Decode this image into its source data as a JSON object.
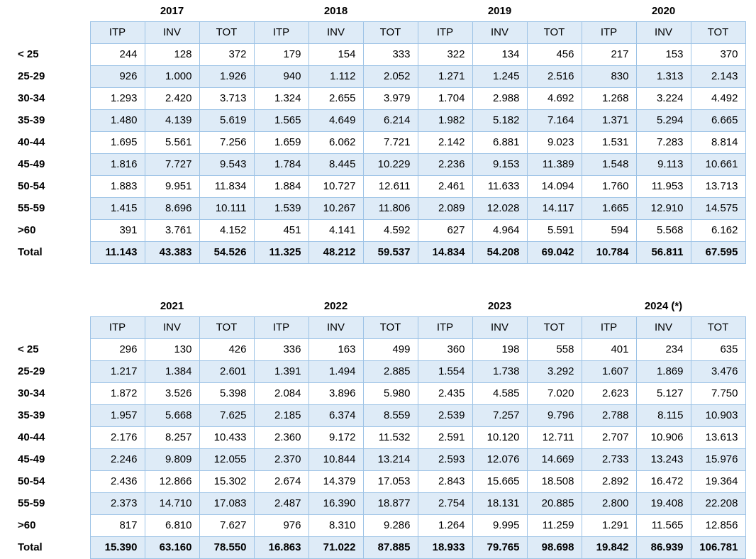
{
  "measures": [
    "ITP",
    "INV",
    "TOT"
  ],
  "tables": [
    {
      "name": "age-distribution-2017-2020",
      "years": [
        "2017",
        "2018",
        "2019",
        "2020"
      ],
      "rows": [
        {
          "label": "< 25",
          "values": [
            "244",
            "128",
            "372",
            "179",
            "154",
            "333",
            "322",
            "134",
            "456",
            "217",
            "153",
            "370"
          ]
        },
        {
          "label": "25-29",
          "values": [
            "926",
            "1.000",
            "1.926",
            "940",
            "1.112",
            "2.052",
            "1.271",
            "1.245",
            "2.516",
            "830",
            "1.313",
            "2.143"
          ]
        },
        {
          "label": "30-34",
          "values": [
            "1.293",
            "2.420",
            "3.713",
            "1.324",
            "2.655",
            "3.979",
            "1.704",
            "2.988",
            "4.692",
            "1.268",
            "3.224",
            "4.492"
          ]
        },
        {
          "label": "35-39",
          "values": [
            "1.480",
            "4.139",
            "5.619",
            "1.565",
            "4.649",
            "6.214",
            "1.982",
            "5.182",
            "7.164",
            "1.371",
            "5.294",
            "6.665"
          ]
        },
        {
          "label": "40-44",
          "values": [
            "1.695",
            "5.561",
            "7.256",
            "1.659",
            "6.062",
            "7.721",
            "2.142",
            "6.881",
            "9.023",
            "1.531",
            "7.283",
            "8.814"
          ]
        },
        {
          "label": "45-49",
          "values": [
            "1.816",
            "7.727",
            "9.543",
            "1.784",
            "8.445",
            "10.229",
            "2.236",
            "9.153",
            "11.389",
            "1.548",
            "9.113",
            "10.661"
          ]
        },
        {
          "label": "50-54",
          "values": [
            "1.883",
            "9.951",
            "11.834",
            "1.884",
            "10.727",
            "12.611",
            "2.461",
            "11.633",
            "14.094",
            "1.760",
            "11.953",
            "13.713"
          ]
        },
        {
          "label": "55-59",
          "values": [
            "1.415",
            "8.696",
            "10.111",
            "1.539",
            "10.267",
            "11.806",
            "2.089",
            "12.028",
            "14.117",
            "1.665",
            "12.910",
            "14.575"
          ]
        },
        {
          "label": ">60",
          "values": [
            "391",
            "3.761",
            "4.152",
            "451",
            "4.141",
            "4.592",
            "627",
            "4.964",
            "5.591",
            "594",
            "5.568",
            "6.162"
          ]
        },
        {
          "label": "Total",
          "values": [
            "11.143",
            "43.383",
            "54.526",
            "11.325",
            "48.212",
            "59.537",
            "14.834",
            "54.208",
            "69.042",
            "10.784",
            "56.811",
            "67.595"
          ],
          "total": true
        }
      ]
    },
    {
      "name": "age-distribution-2021-2024",
      "years": [
        "2021",
        "2022",
        "2023",
        "2024 (*)"
      ],
      "rows": [
        {
          "label": "< 25",
          "values": [
            "296",
            "130",
            "426",
            "336",
            "163",
            "499",
            "360",
            "198",
            "558",
            "401",
            "234",
            "635"
          ]
        },
        {
          "label": "25-29",
          "values": [
            "1.217",
            "1.384",
            "2.601",
            "1.391",
            "1.494",
            "2.885",
            "1.554",
            "1.738",
            "3.292",
            "1.607",
            "1.869",
            "3.476"
          ]
        },
        {
          "label": "30-34",
          "values": [
            "1.872",
            "3.526",
            "5.398",
            "2.084",
            "3.896",
            "5.980",
            "2.435",
            "4.585",
            "7.020",
            "2.623",
            "5.127",
            "7.750"
          ]
        },
        {
          "label": "35-39",
          "values": [
            "1.957",
            "5.668",
            "7.625",
            "2.185",
            "6.374",
            "8.559",
            "2.539",
            "7.257",
            "9.796",
            "2.788",
            "8.115",
            "10.903"
          ]
        },
        {
          "label": "40-44",
          "values": [
            "2.176",
            "8.257",
            "10.433",
            "2.360",
            "9.172",
            "11.532",
            "2.591",
            "10.120",
            "12.711",
            "2.707",
            "10.906",
            "13.613"
          ]
        },
        {
          "label": "45-49",
          "values": [
            "2.246",
            "9.809",
            "12.055",
            "2.370",
            "10.844",
            "13.214",
            "2.593",
            "12.076",
            "14.669",
            "2.733",
            "13.243",
            "15.976"
          ]
        },
        {
          "label": "50-54",
          "values": [
            "2.436",
            "12.866",
            "15.302",
            "2.674",
            "14.379",
            "17.053",
            "2.843",
            "15.665",
            "18.508",
            "2.892",
            "16.472",
            "19.364"
          ]
        },
        {
          "label": "55-59",
          "values": [
            "2.373",
            "14.710",
            "17.083",
            "2.487",
            "16.390",
            "18.877",
            "2.754",
            "18.131",
            "20.885",
            "2.800",
            "19.408",
            "22.208"
          ]
        },
        {
          "label": ">60",
          "values": [
            "817",
            "6.810",
            "7.627",
            "976",
            "8.310",
            "9.286",
            "1.264",
            "9.995",
            "11.259",
            "1.291",
            "11.565",
            "12.856"
          ]
        },
        {
          "label": "Total",
          "values": [
            "15.390",
            "63.160",
            "78.550",
            "16.863",
            "71.022",
            "87.885",
            "18.933",
            "79.765",
            "98.698",
            "19.842",
            "86.939",
            "106.781"
          ],
          "total": true
        }
      ]
    }
  ],
  "style": {
    "grid_border_color": "#9dc3e6",
    "band_fill_color": "#deebf7",
    "text_color": "#000000"
  }
}
